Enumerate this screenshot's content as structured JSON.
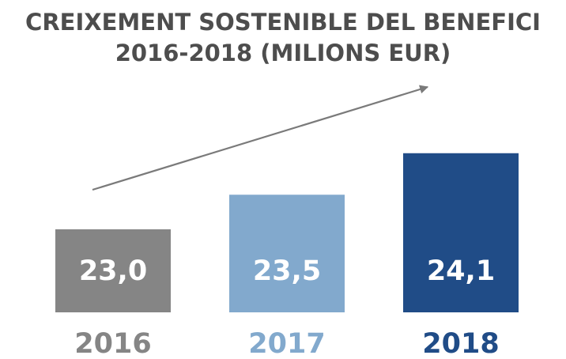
{
  "chart_data": {
    "type": "bar",
    "title_lines": [
      "CREIXEMENT SOSTENIBLE DEL BENEFICI",
      "2016-2018 (MILIONS EUR)"
    ],
    "categories": [
      "2016",
      "2017",
      "2018"
    ],
    "values": [
      23.0,
      23.5,
      24.1
    ],
    "value_labels": [
      "23,0",
      "23,5",
      "24,1"
    ],
    "bar_colors": [
      "#858585",
      "#82a9cd",
      "#204c87"
    ],
    "category_label_colors": [
      "#858585",
      "#82a9cd",
      "#204c87"
    ],
    "trend_arrow": true,
    "trend_color": "#7a7a7a",
    "baseline": 21.8,
    "ylim": [
      21.8,
      24.6
    ],
    "xlabel": "",
    "ylabel": "",
    "grid": false,
    "legend": "none"
  }
}
